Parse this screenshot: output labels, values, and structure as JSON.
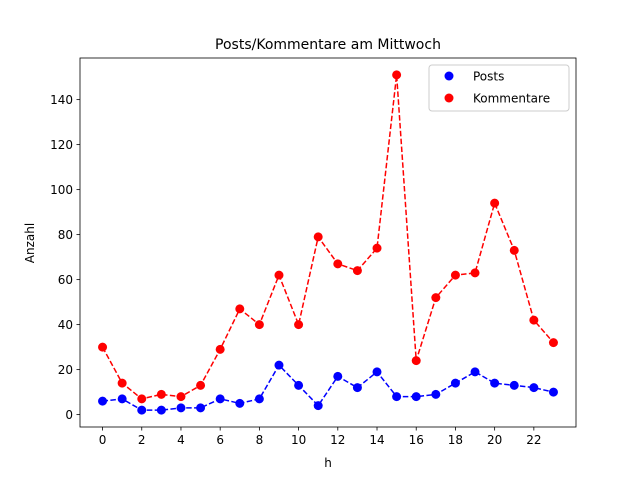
{
  "chart_data": {
    "type": "line",
    "title": "Posts/Kommentare am Mittwoch",
    "xlabel": "h",
    "ylabel": "Anzahl",
    "x": [
      0,
      1,
      2,
      3,
      4,
      5,
      6,
      7,
      8,
      9,
      10,
      11,
      12,
      13,
      14,
      15,
      16,
      17,
      18,
      19,
      20,
      21,
      22,
      23
    ],
    "series": [
      {
        "name": "Posts",
        "color": "#0000ff",
        "values": [
          6,
          7,
          2,
          2,
          3,
          3,
          7,
          5,
          7,
          22,
          13,
          4,
          17,
          12,
          19,
          8,
          8,
          9,
          14,
          19,
          14,
          13,
          12,
          10
        ]
      },
      {
        "name": "Kommentare",
        "color": "#ff0000",
        "values": [
          30,
          14,
          7,
          9,
          8,
          13,
          29,
          47,
          40,
          62,
          40,
          79,
          67,
          64,
          74,
          151,
          24,
          52,
          62,
          63,
          94,
          73,
          42,
          32
        ]
      }
    ],
    "xlim": [
      -1.15,
      24.15
    ],
    "ylim": [
      -5.5,
      158.5
    ],
    "xticks": [
      0,
      2,
      4,
      6,
      8,
      10,
      12,
      14,
      16,
      18,
      20,
      22
    ],
    "yticks": [
      0,
      20,
      40,
      60,
      80,
      100,
      120,
      140
    ],
    "line_style": "dashed",
    "marker": "circle",
    "grid": false,
    "legend_position": "top-right"
  }
}
